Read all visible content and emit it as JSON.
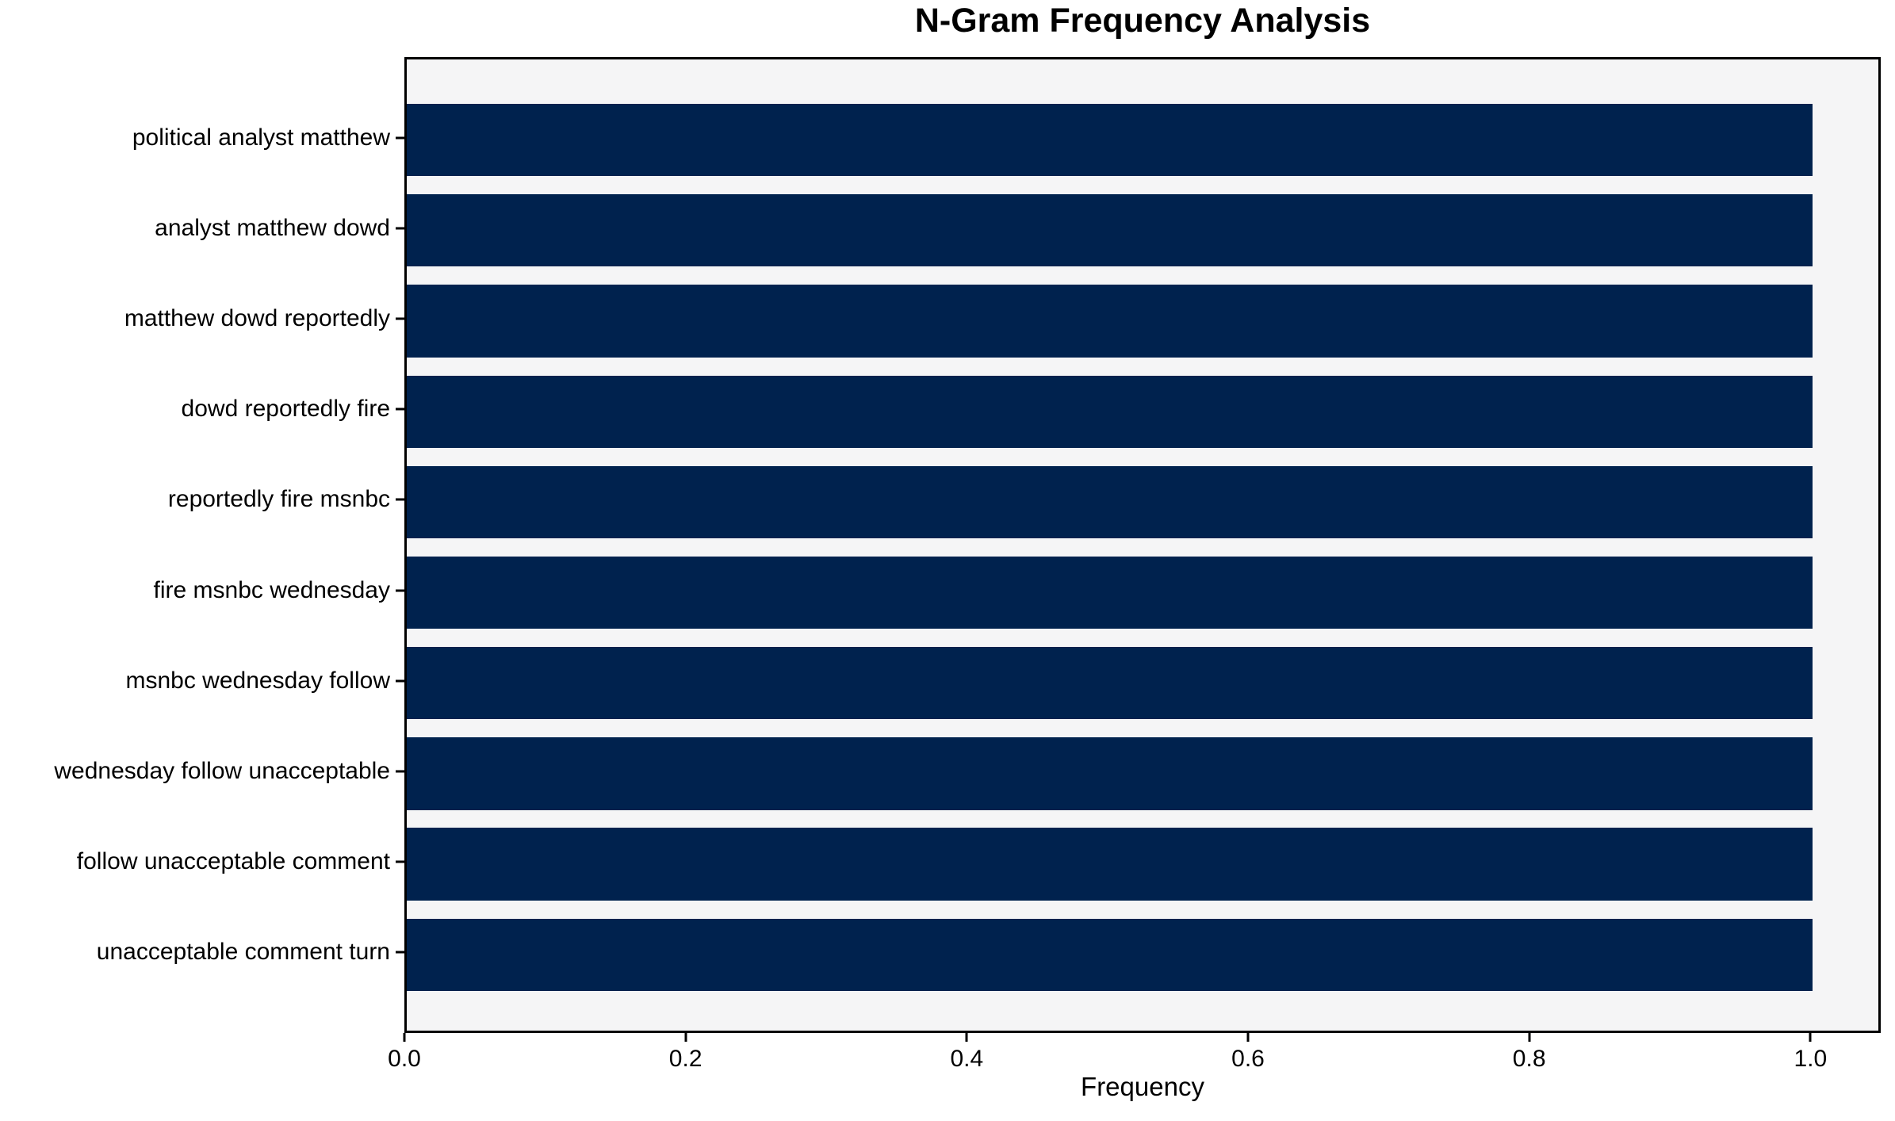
{
  "chart_data": {
    "type": "bar",
    "orientation": "horizontal",
    "title": "N-Gram Frequency Analysis",
    "xlabel": "Frequency",
    "ylabel": "",
    "categories": [
      "political analyst matthew",
      "analyst matthew dowd",
      "matthew dowd reportedly",
      "dowd reportedly fire",
      "reportedly fire msnbc",
      "fire msnbc wednesday",
      "msnbc wednesday follow",
      "wednesday follow unacceptable",
      "follow unacceptable comment",
      "unacceptable comment turn"
    ],
    "values": [
      1.0,
      1.0,
      1.0,
      1.0,
      1.0,
      1.0,
      1.0,
      1.0,
      1.0,
      1.0
    ],
    "xticks": {
      "values": [
        0.0,
        0.2,
        0.4,
        0.6,
        0.8,
        1.0
      ],
      "labels": [
        "0.0",
        "0.2",
        "0.4",
        "0.6",
        "0.8",
        "1.0"
      ]
    },
    "xlim": [
      0,
      1.05
    ],
    "grid": false,
    "legend": null,
    "colors": {
      "bar": "#00224e",
      "plot_background": "#f5f5f6",
      "figure_background": "#ffffff",
      "spine": "#000000",
      "text": "#000000"
    }
  }
}
